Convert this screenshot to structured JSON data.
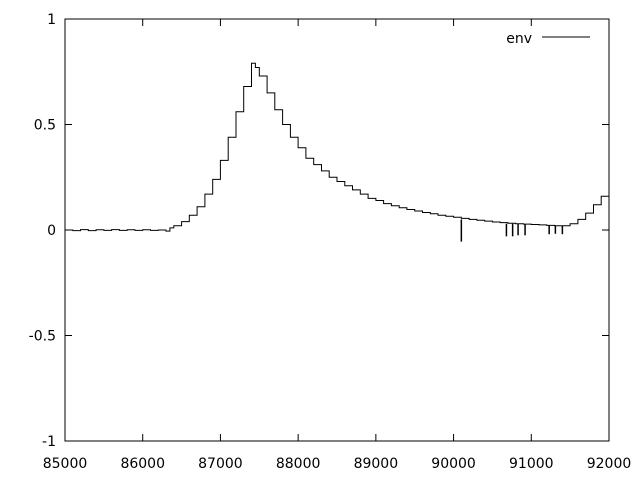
{
  "chart_data": {
    "type": "line",
    "title": "",
    "xlabel": "",
    "ylabel": "",
    "xlim": [
      85000,
      92000
    ],
    "ylim": [
      -1,
      1
    ],
    "xticks": [
      85000,
      86000,
      87000,
      88000,
      89000,
      90000,
      91000,
      92000
    ],
    "xtick_labels": [
      "85000",
      "86000",
      "87000",
      "88000",
      "89000",
      "90000",
      "91000",
      "92000"
    ],
    "yticks": [
      -1,
      -0.5,
      0,
      0.5,
      1
    ],
    "ytick_labels": [
      "-1",
      "-0.5",
      "0",
      "0.5",
      "1"
    ],
    "grid": false,
    "legend_position": "top-right",
    "line_color": "#000000",
    "series": [
      {
        "name": "env",
        "x": [
          85000,
          85100,
          85200,
          85300,
          85400,
          85500,
          85600,
          85700,
          85800,
          85900,
          86000,
          86100,
          86200,
          86300,
          86350,
          86400,
          86500,
          86600,
          86700,
          86800,
          86900,
          87000,
          87100,
          87200,
          87300,
          87400,
          87450,
          87500,
          87600,
          87700,
          87800,
          87900,
          88000,
          88100,
          88200,
          88300,
          88400,
          88500,
          88600,
          88700,
          88800,
          88900,
          89000,
          89100,
          89200,
          89300,
          89400,
          89500,
          89600,
          89700,
          89800,
          89900,
          90000,
          90100,
          90200,
          90300,
          90400,
          90500,
          90600,
          90700,
          90800,
          90900,
          91000,
          91100,
          91200,
          91300,
          91400,
          91500,
          91600,
          91700,
          91800,
          91900,
          92000
        ],
        "y": [
          0.0,
          -0.003,
          0.002,
          -0.003,
          0.001,
          -0.002,
          0.002,
          -0.002,
          0.001,
          -0.002,
          0.001,
          -0.002,
          0.0,
          -0.005,
          0.01,
          0.02,
          0.04,
          0.07,
          0.11,
          0.17,
          0.24,
          0.33,
          0.44,
          0.56,
          0.68,
          0.79,
          0.77,
          0.73,
          0.65,
          0.57,
          0.5,
          0.44,
          0.39,
          0.34,
          0.31,
          0.28,
          0.25,
          0.23,
          0.21,
          0.19,
          0.17,
          0.15,
          0.14,
          0.125,
          0.115,
          0.105,
          0.097,
          0.09,
          0.083,
          0.077,
          0.07,
          0.065,
          0.06,
          0.055,
          0.05,
          0.046,
          0.042,
          0.038,
          0.035,
          0.032,
          0.03,
          0.028,
          0.026,
          0.024,
          0.022,
          0.02,
          0.02,
          0.03,
          0.05,
          0.08,
          0.12,
          0.16,
          0.17
        ]
      }
    ],
    "spikes": [
      {
        "x": 90100,
        "y0": 0.05,
        "y1": -0.055
      },
      {
        "x": 90680,
        "y0": 0.03,
        "y1": -0.03
      },
      {
        "x": 90760,
        "y0": 0.03,
        "y1": -0.03
      },
      {
        "x": 90830,
        "y0": 0.028,
        "y1": -0.025
      },
      {
        "x": 90920,
        "y0": 0.027,
        "y1": -0.025
      },
      {
        "x": 91230,
        "y0": 0.022,
        "y1": -0.02
      },
      {
        "x": 91310,
        "y0": 0.021,
        "y1": -0.018
      },
      {
        "x": 91400,
        "y0": 0.02,
        "y1": -0.02
      }
    ]
  }
}
